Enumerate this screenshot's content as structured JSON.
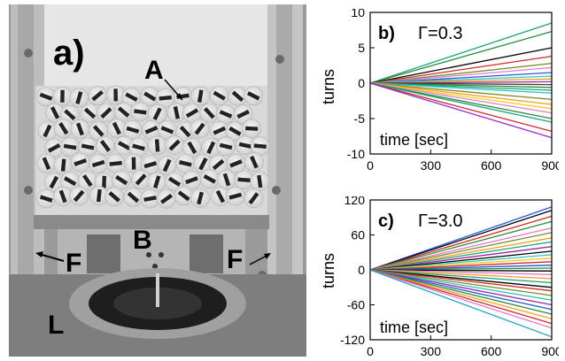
{
  "photo": {
    "panel_label": "a)",
    "labels": {
      "A": "A",
      "B": "B",
      "F_left": "F",
      "F_right": "F",
      "L": "L"
    }
  },
  "chart_data": [
    {
      "type": "line",
      "panel_label": "b)",
      "title": "Γ=0.3",
      "xlabel": "time [sec]",
      "ylabel": "turns",
      "xlim": [
        0,
        900
      ],
      "ylim": [
        -10,
        10
      ],
      "xticks": [
        0,
        300,
        600,
        900
      ],
      "yticks": [
        -10,
        -5,
        0,
        5,
        10
      ],
      "x": [
        0,
        900
      ],
      "series": [
        {
          "color": "#1aa37a",
          "values": [
            0,
            8.5
          ]
        },
        {
          "color": "#2e8b3a",
          "values": [
            0,
            7.3
          ]
        },
        {
          "color": "#000000",
          "values": [
            0,
            5.0
          ]
        },
        {
          "color": "#d12a2a",
          "values": [
            0,
            3.8
          ]
        },
        {
          "color": "#7a8a2a",
          "values": [
            0,
            2.8
          ]
        },
        {
          "color": "#e07bd0",
          "values": [
            0,
            2.2
          ]
        },
        {
          "color": "#1f5bd8",
          "values": [
            0,
            1.5
          ]
        },
        {
          "color": "#2dc7c0",
          "values": [
            0,
            1.0
          ]
        },
        {
          "color": "#f0a020",
          "values": [
            0,
            0.6
          ]
        },
        {
          "color": "#9a2a9a",
          "values": [
            0,
            0.2
          ]
        },
        {
          "color": "#3a3a3a",
          "values": [
            0,
            -0.2
          ]
        },
        {
          "color": "#2e8b3a",
          "values": [
            0,
            -0.6
          ]
        },
        {
          "color": "#1aa37a",
          "values": [
            0,
            -1.0
          ]
        },
        {
          "color": "#2dc7c0",
          "values": [
            0,
            -1.4
          ]
        },
        {
          "color": "#7a8a2a",
          "values": [
            0,
            -2.3
          ]
        },
        {
          "color": "#f0a020",
          "values": [
            0,
            -3.0
          ]
        },
        {
          "color": "#f2d020",
          "values": [
            0,
            -3.6
          ]
        },
        {
          "color": "#e07bd0",
          "values": [
            0,
            -4.2
          ]
        },
        {
          "color": "#2e8b3a",
          "values": [
            0,
            -5.0
          ]
        },
        {
          "color": "#1aa37a",
          "values": [
            0,
            -5.5
          ]
        },
        {
          "color": "#d12a2a",
          "values": [
            0,
            -6.8
          ]
        },
        {
          "color": "#9a2ad0",
          "values": [
            0,
            -7.7
          ]
        }
      ]
    },
    {
      "type": "line",
      "panel_label": "c)",
      "title": "Γ=3.0",
      "xlabel": "time [sec]",
      "ylabel": "turns",
      "xlim": [
        0,
        900
      ],
      "ylim": [
        -120,
        120
      ],
      "xticks": [
        0,
        300,
        600,
        900
      ],
      "yticks": [
        -120,
        -60,
        0,
        60,
        120
      ],
      "x": [
        0,
        900
      ],
      "series": [
        {
          "color": "#1f5bd8",
          "values": [
            0,
            108
          ]
        },
        {
          "color": "#000000",
          "values": [
            0,
            102
          ]
        },
        {
          "color": "#d12a2a",
          "values": [
            0,
            92
          ]
        },
        {
          "color": "#2e8b3a",
          "values": [
            0,
            83
          ]
        },
        {
          "color": "#e07bd0",
          "values": [
            0,
            72
          ]
        },
        {
          "color": "#7a8a2a",
          "values": [
            0,
            64
          ]
        },
        {
          "color": "#f0a020",
          "values": [
            0,
            55
          ]
        },
        {
          "color": "#1aa37a",
          "values": [
            0,
            48
          ]
        },
        {
          "color": "#9a2a9a",
          "values": [
            0,
            40
          ]
        },
        {
          "color": "#000000",
          "values": [
            0,
            32
          ]
        },
        {
          "color": "#2dc7c0",
          "values": [
            0,
            26
          ]
        },
        {
          "color": "#f2d020",
          "values": [
            0,
            20
          ]
        },
        {
          "color": "#d12a2a",
          "values": [
            0,
            14
          ]
        },
        {
          "color": "#1f5bd8",
          "values": [
            0,
            8
          ]
        },
        {
          "color": "#2e8b3a",
          "values": [
            0,
            3
          ]
        },
        {
          "color": "#000000",
          "values": [
            0,
            -2
          ]
        },
        {
          "color": "#e07bd0",
          "values": [
            0,
            -8
          ]
        },
        {
          "color": "#f0a020",
          "values": [
            0,
            -15
          ]
        },
        {
          "color": "#1aa37a",
          "values": [
            0,
            -22
          ]
        },
        {
          "color": "#000000",
          "values": [
            0,
            -30
          ]
        },
        {
          "color": "#d12a2a",
          "values": [
            0,
            -36
          ]
        },
        {
          "color": "#7a8a2a",
          "values": [
            0,
            -44
          ]
        },
        {
          "color": "#2dc7c0",
          "values": [
            0,
            -52
          ]
        },
        {
          "color": "#9a2a9a",
          "values": [
            0,
            -60
          ]
        },
        {
          "color": "#1f5bd8",
          "values": [
            0,
            -68
          ]
        },
        {
          "color": "#2e8b3a",
          "values": [
            0,
            -76
          ]
        },
        {
          "color": "#f0a020",
          "values": [
            0,
            -84
          ]
        },
        {
          "color": "#d12a2a",
          "values": [
            0,
            -92
          ]
        },
        {
          "color": "#e07bd0",
          "values": [
            0,
            -100
          ]
        },
        {
          "color": "#1aa3c7",
          "values": [
            0,
            -115
          ]
        }
      ]
    }
  ]
}
